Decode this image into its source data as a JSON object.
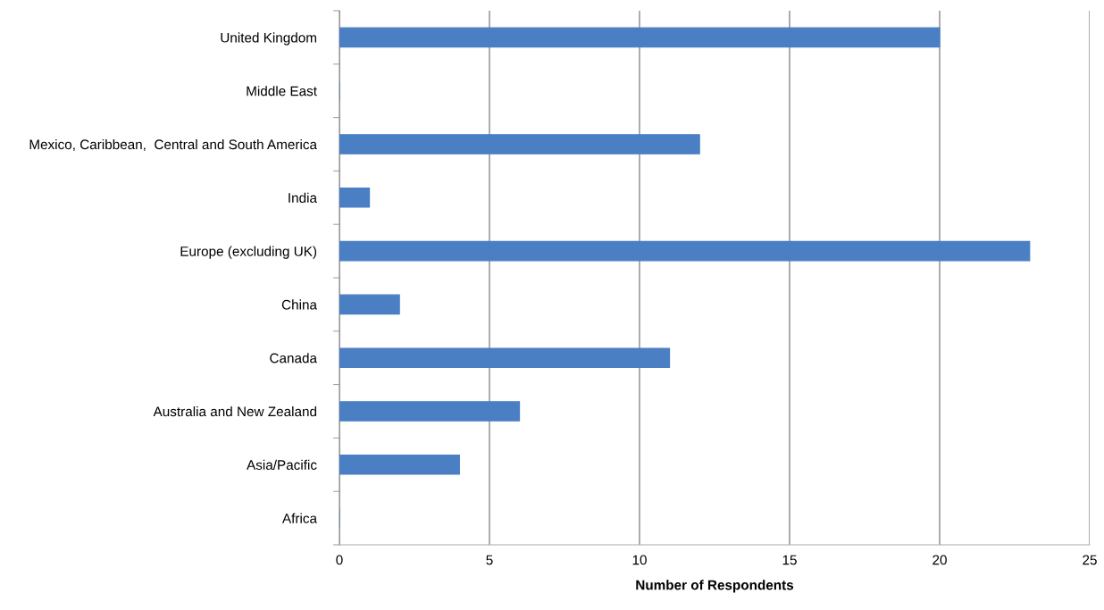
{
  "chart_data": {
    "type": "bar",
    "orientation": "horizontal",
    "categories": [
      "United Kingdom",
      "Middle East",
      "Mexico, Caribbean,  Central and South America",
      "India",
      "Europe (excluding UK)",
      "China",
      "Canada",
      "Australia and New Zealand",
      "Asia/Pacific",
      "Africa"
    ],
    "values": [
      20,
      0,
      12,
      1,
      23,
      2,
      11,
      6,
      4,
      0
    ],
    "color": "#4a7fc4",
    "xlabel": "Number of Respondents",
    "xlim": [
      0,
      25
    ],
    "xticks": [
      0,
      5,
      10,
      15,
      20,
      25
    ],
    "grid": "x"
  }
}
